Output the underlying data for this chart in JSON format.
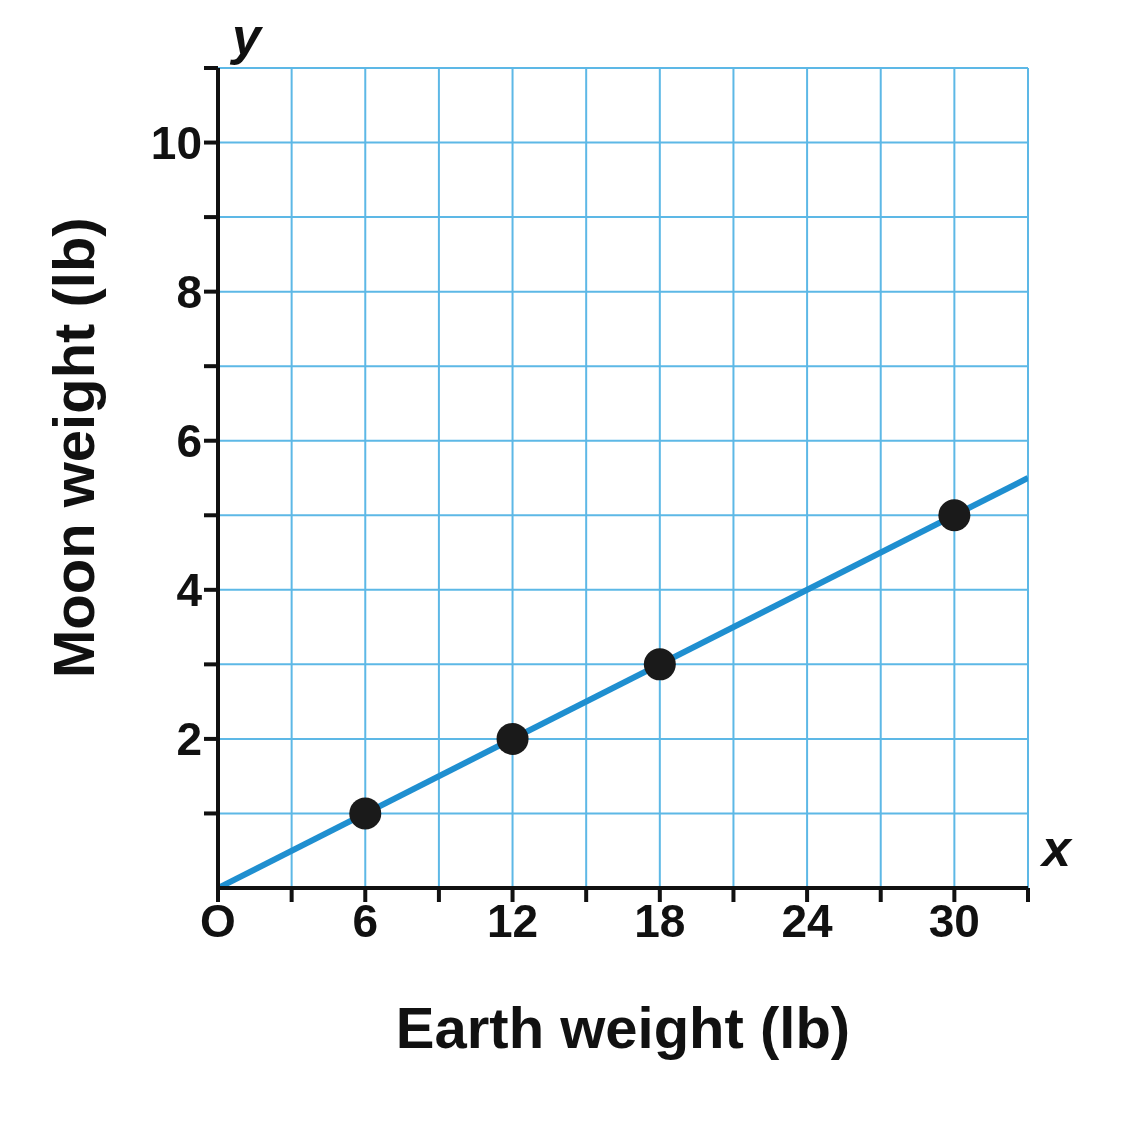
{
  "chart_data": {
    "type": "line",
    "xlabel": "Earth weight (lb)",
    "ylabel": "Moon weight (lb)",
    "annotations": [
      "y",
      "x"
    ],
    "xlim": [
      0,
      33
    ],
    "ylim": [
      0,
      11
    ],
    "xticks": [
      {
        "value": 0,
        "label": "O"
      },
      {
        "value": 3,
        "label": null
      },
      6,
      {
        "value": 9,
        "label": null
      },
      12,
      {
        "value": 15,
        "label": null
      },
      18,
      {
        "value": 21,
        "label": null
      },
      24,
      {
        "value": 27,
        "label": null
      },
      30,
      {
        "value": 33,
        "label": null
      }
    ],
    "yticks": [
      {
        "value": 1,
        "label": null
      },
      2,
      {
        "value": 3,
        "label": null
      },
      4,
      {
        "value": 5,
        "label": null
      },
      6,
      {
        "value": 7,
        "label": null
      },
      8,
      {
        "value": 9,
        "label": null
      },
      10,
      {
        "value": 11,
        "label": null
      }
    ],
    "grid": true,
    "series": [
      {
        "color": "#1f8fd0",
        "x": [
          0,
          33
        ],
        "values": [
          0,
          5.5
        ],
        "marker": "none"
      },
      {
        "type": "scatter",
        "color": "#1a1a1a",
        "x": [
          6,
          12,
          18,
          30
        ],
        "values": [
          1,
          2,
          3,
          5
        ],
        "marker": "circle"
      }
    ]
  }
}
